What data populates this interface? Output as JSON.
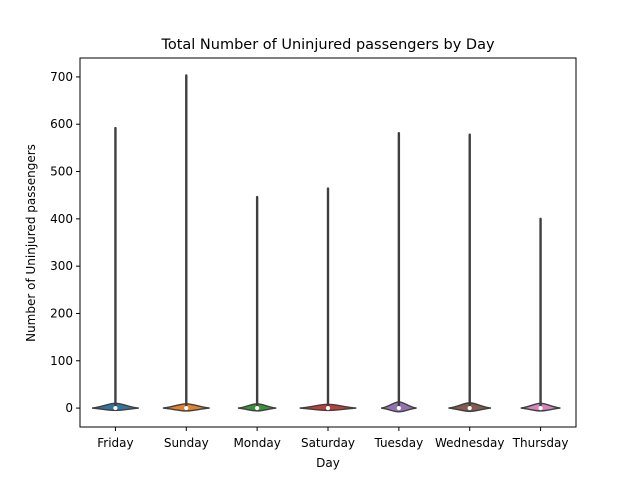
{
  "chart_data": {
    "type": "violin",
    "title": "Total Number of Uninjured passengers by Day",
    "xlabel": "Day",
    "ylabel": "Number of Uninjured passengers",
    "categories": [
      "Friday",
      "Sunday",
      "Monday",
      "Saturday",
      "Tuesday",
      "Wednesday",
      "Thursday"
    ],
    "colors": [
      "#3274a1",
      "#e1812c",
      "#3a923a",
      "#c03d3e",
      "#9372b2",
      "#845b53",
      "#d684bd"
    ],
    "ylim": [
      -40,
      740
    ],
    "yticks": [
      0,
      100,
      200,
      300,
      400,
      500,
      600,
      700
    ],
    "grid": false,
    "legend": "none",
    "series": [
      {
        "category": "Friday",
        "max": 592,
        "min": 0,
        "median": 0,
        "body_top": 10,
        "body_bottom": -5,
        "half_width": 0.33
      },
      {
        "category": "Sunday",
        "max": 703,
        "min": 0,
        "median": 0,
        "body_top": 9,
        "body_bottom": -6,
        "half_width": 0.33
      },
      {
        "category": "Monday",
        "max": 446,
        "min": 0,
        "median": 0,
        "body_top": 9,
        "body_bottom": -6,
        "half_width": 0.27
      },
      {
        "category": "Saturday",
        "max": 464,
        "min": 0,
        "median": 0,
        "body_top": 8,
        "body_bottom": -5,
        "half_width": 0.4
      },
      {
        "category": "Tuesday",
        "max": 581,
        "min": 0,
        "median": 0,
        "body_top": 13,
        "body_bottom": -8,
        "half_width": 0.25
      },
      {
        "category": "Wednesday",
        "max": 578,
        "min": 0,
        "median": 0,
        "body_top": 11,
        "body_bottom": -7,
        "half_width": 0.3
      },
      {
        "category": "Thursday",
        "max": 400,
        "min": 0,
        "median": 0,
        "body_top": 10,
        "body_bottom": -6,
        "half_width": 0.28
      }
    ]
  }
}
